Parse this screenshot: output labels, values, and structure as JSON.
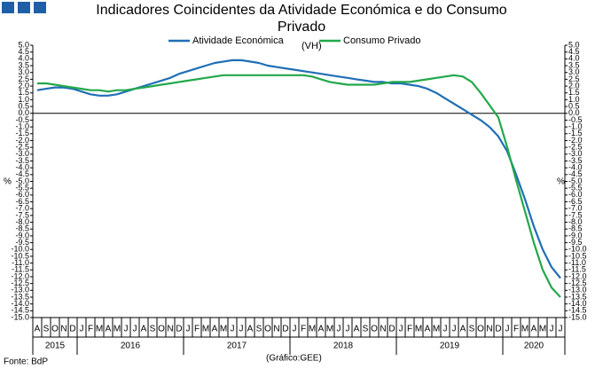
{
  "chart_data": {
    "type": "line",
    "title": "Indicadores Coincidentes da Atividade Económica e do Consumo Privado",
    "source": "Fonte: BdP",
    "credit": "(Gráfico:GEE)",
    "annotation": "(VH)",
    "ylabel": "%",
    "categories": [
      "A",
      "S",
      "O",
      "N",
      "D",
      "J",
      "F",
      "M",
      "A",
      "M",
      "J",
      "J",
      "A",
      "S",
      "O",
      "N",
      "D",
      "J",
      "F",
      "M",
      "A",
      "M",
      "J",
      "J",
      "A",
      "S",
      "O",
      "N",
      "D",
      "J",
      "F",
      "M",
      "A",
      "M",
      "J",
      "J",
      "A",
      "S",
      "O",
      "N",
      "D",
      "J",
      "F",
      "M",
      "A",
      "M",
      "J",
      "J",
      "A",
      "S",
      "O",
      "N",
      "D",
      "J",
      "F",
      "M",
      "A",
      "M",
      "J",
      "J"
    ],
    "years": [
      "2015",
      "2016",
      "2017",
      "2018",
      "2019",
      "2020"
    ],
    "series": [
      {
        "name": "Atividade Económica",
        "color": "#1f6fb5",
        "values": [
          1.7,
          1.8,
          1.9,
          1.9,
          1.8,
          1.6,
          1.4,
          1.3,
          1.3,
          1.4,
          1.6,
          1.8,
          2.0,
          2.2,
          2.4,
          2.6,
          2.9,
          3.1,
          3.3,
          3.5,
          3.7,
          3.8,
          3.9,
          3.9,
          3.8,
          3.7,
          3.5,
          3.4,
          3.3,
          3.2,
          3.1,
          3.0,
          2.9,
          2.8,
          2.7,
          2.6,
          2.5,
          2.4,
          2.3,
          2.3,
          2.2,
          2.2,
          2.1,
          2.0,
          1.8,
          1.5,
          1.1,
          0.7,
          0.3,
          -0.1,
          -0.5,
          -1.0,
          -1.7,
          -2.8,
          -4.5,
          -6.3,
          -8.3,
          -10.0,
          -11.3,
          -12.1
        ]
      },
      {
        "name": "Consumo Privado",
        "color": "#22a84a",
        "values": [
          2.2,
          2.2,
          2.1,
          2.0,
          1.9,
          1.8,
          1.7,
          1.7,
          1.6,
          1.7,
          1.7,
          1.8,
          1.9,
          2.0,
          2.1,
          2.2,
          2.3,
          2.4,
          2.5,
          2.6,
          2.7,
          2.8,
          2.8,
          2.8,
          2.8,
          2.8,
          2.8,
          2.8,
          2.8,
          2.8,
          2.8,
          2.7,
          2.5,
          2.3,
          2.2,
          2.1,
          2.1,
          2.1,
          2.1,
          2.2,
          2.3,
          2.3,
          2.3,
          2.4,
          2.5,
          2.6,
          2.7,
          2.8,
          2.7,
          2.3,
          1.5,
          0.6,
          -0.3,
          -2.5,
          -4.9,
          -7.2,
          -9.5,
          -11.5,
          -12.8,
          -13.5
        ]
      }
    ],
    "ylim": [
      -15,
      5
    ],
    "yticks": [
      {
        "value": 5,
        "label": "5.0"
      },
      4.5,
      {
        "value": 4,
        "label": "4.0"
      },
      3.5,
      {
        "value": 3,
        "label": "3.0"
      },
      2.5,
      {
        "value": 2,
        "label": "2.0"
      },
      1.5,
      {
        "value": 1,
        "label": "1.0"
      },
      0.5,
      {
        "value": 0,
        "label": "0.0"
      },
      -0.5,
      {
        "value": -1,
        "label": "-1.0"
      },
      -1.5,
      {
        "value": -2,
        "label": "-2.0"
      },
      -2.5,
      {
        "value": -3,
        "label": "-3.0"
      },
      -3.5,
      {
        "value": -4,
        "label": "-4.0"
      },
      -4.5,
      {
        "value": -5,
        "label": "-5.0"
      },
      -5.5,
      {
        "value": -6,
        "label": "-6.0"
      },
      -6.5,
      {
        "value": -7,
        "label": "-7.0"
      },
      -7.5,
      {
        "value": -8,
        "label": "-8.0"
      },
      -8.5,
      {
        "value": -9,
        "label": "-9.0"
      },
      -9.5,
      {
        "value": -10,
        "label": "-10.0"
      },
      -10.5,
      {
        "value": -11,
        "label": "-11.0"
      },
      -11.5,
      {
        "value": -12,
        "label": "-12.0"
      },
      -12.5,
      {
        "value": -13,
        "label": "-13.0"
      },
      -13.5,
      {
        "value": -14,
        "label": "-14.0"
      },
      -14.5,
      {
        "value": -15,
        "label": "-15.0"
      }
    ],
    "legend": "top"
  }
}
